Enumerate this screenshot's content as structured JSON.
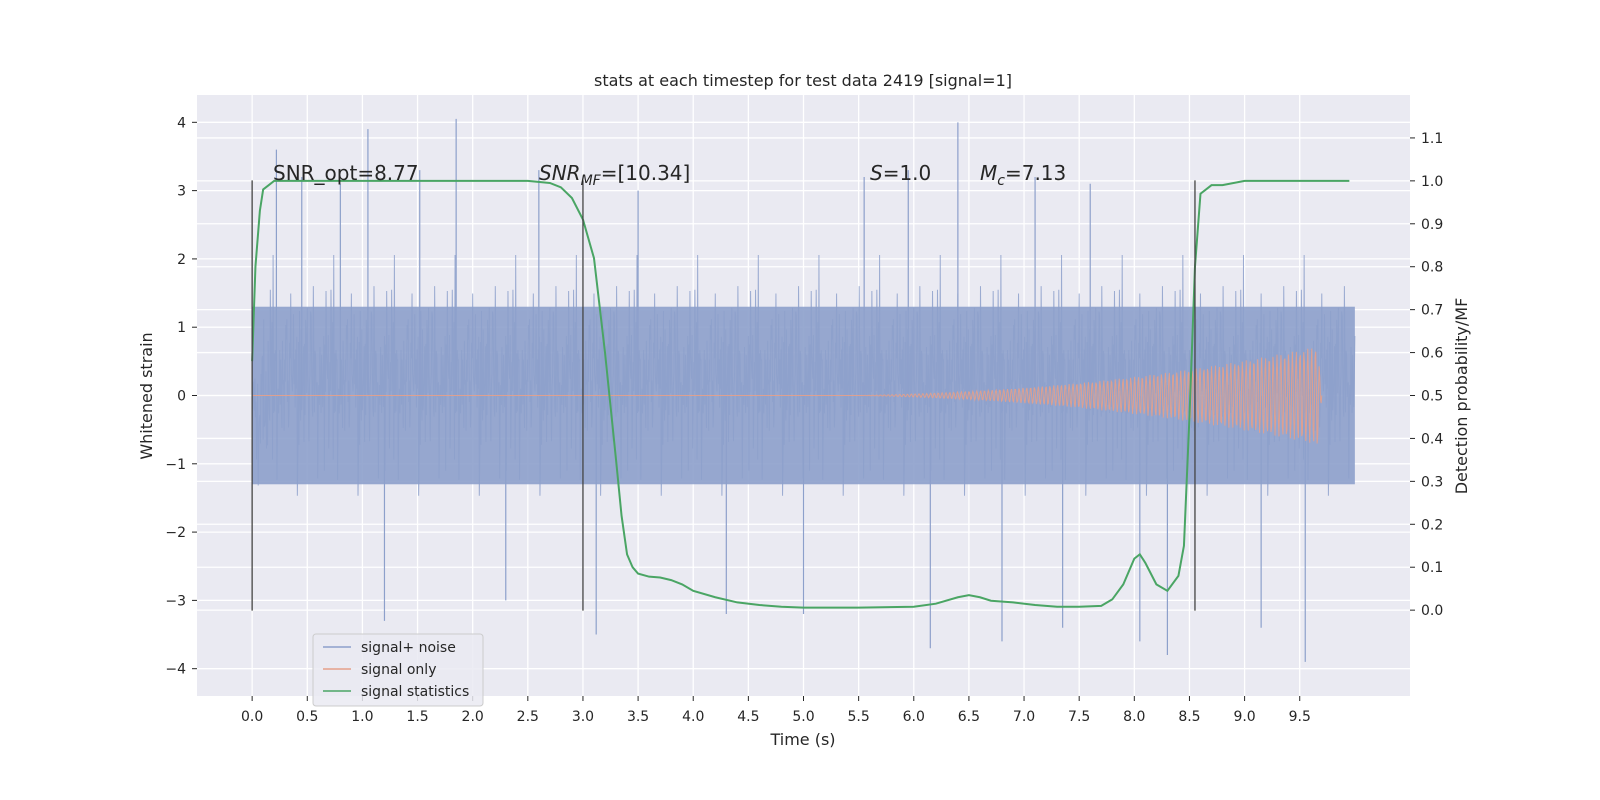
{
  "chart_data": {
    "type": "line",
    "title": "stats at each timestep for test data 2419 [signal=1]",
    "xlabel": "Time (s)",
    "ylabel_left": "Whitened strain",
    "ylabel_right": "Detection probability/MF",
    "xlim": [
      -0.5,
      10.5
    ],
    "ylim_left": [
      -4.4,
      4.4
    ],
    "ylim_right": [
      -0.2,
      1.2
    ],
    "x_ticks": [
      "0.0",
      "0.5",
      "1.0",
      "1.5",
      "2.0",
      "2.5",
      "3.0",
      "3.5",
      "4.0",
      "4.5",
      "5.0",
      "5.5",
      "6.0",
      "6.5",
      "7.0",
      "7.5",
      "8.0",
      "8.5",
      "9.0",
      "9.5"
    ],
    "y_left_ticks": [
      "4",
      "3",
      "2",
      "1",
      "0",
      "−1",
      "−2",
      "−3",
      "−4"
    ],
    "y_right_ticks": [
      "1.1",
      "1.0",
      "0.9",
      "0.8",
      "0.7",
      "0.6",
      "0.5",
      "0.4",
      "0.3",
      "0.2",
      "0.1",
      "0.0"
    ],
    "grid": true,
    "legend_position": "lower-left",
    "annotations": {
      "snr_opt": "SNR_opt=8.77",
      "snr_mf_base": "SNR",
      "snr_mf_sub": "MF",
      "snr_mf_value": "=[10.34]",
      "s_var": "S",
      "s_value": "=1.0",
      "mc_var": "M",
      "mc_sub": "c",
      "mc_value": "=7.13"
    },
    "vertical_markers": [
      0.0,
      3.0,
      8.55
    ],
    "series": [
      {
        "name": "signal+ noise",
        "color": "#8da0cb",
        "axis": "left",
        "envelope": {
          "x_range": [
            0.0,
            10.0
          ],
          "core": [
            -1.3,
            1.3
          ],
          "typical_peak": 2.3
        },
        "spikes": [
          [
            0.22,
            3.6
          ],
          [
            0.45,
            3.2
          ],
          [
            0.8,
            3.1
          ],
          [
            1.05,
            3.9
          ],
          [
            1.2,
            -3.3
          ],
          [
            1.52,
            3.3
          ],
          [
            1.85,
            4.05
          ],
          [
            2.3,
            -3.0
          ],
          [
            2.6,
            3.3
          ],
          [
            3.12,
            -3.5
          ],
          [
            3.5,
            3.0
          ],
          [
            4.3,
            -3.2
          ],
          [
            5.0,
            -3.2
          ],
          [
            5.55,
            3.2
          ],
          [
            5.95,
            3.3
          ],
          [
            6.15,
            -3.7
          ],
          [
            6.4,
            4.0
          ],
          [
            6.8,
            -3.6
          ],
          [
            7.1,
            3.2
          ],
          [
            7.35,
            -3.4
          ],
          [
            7.6,
            3.1
          ],
          [
            8.05,
            -3.6
          ],
          [
            8.3,
            -3.8
          ],
          [
            9.15,
            -3.4
          ],
          [
            9.55,
            -3.9
          ]
        ]
      },
      {
        "name": "signal only",
        "color": "#e5a08a",
        "axis": "left",
        "chirp": {
          "start": 5.5,
          "peak_time": 9.65,
          "peak_amplitude": 0.95,
          "end": 9.7
        }
      },
      {
        "name": "signal statistics",
        "color": "#4aa564",
        "axis": "right",
        "x": [
          0.0,
          0.03,
          0.07,
          0.1,
          0.15,
          0.2,
          0.3,
          0.5,
          1.0,
          1.5,
          2.0,
          2.5,
          2.7,
          2.8,
          2.9,
          3.0,
          3.1,
          3.2,
          3.3,
          3.35,
          3.4,
          3.45,
          3.5,
          3.6,
          3.7,
          3.8,
          3.9,
          4.0,
          4.2,
          4.4,
          4.6,
          4.8,
          5.0,
          5.5,
          6.0,
          6.2,
          6.4,
          6.5,
          6.6,
          6.7,
          6.9,
          7.1,
          7.3,
          7.5,
          7.7,
          7.8,
          7.9,
          8.0,
          8.05,
          8.1,
          8.2,
          8.3,
          8.4,
          8.45,
          8.5,
          8.55,
          8.6,
          8.7,
          8.8,
          9.0,
          9.5,
          9.95
        ],
        "y": [
          0.58,
          0.8,
          0.93,
          0.98,
          0.99,
          1.0,
          1.0,
          1.0,
          1.0,
          1.0,
          1.0,
          1.0,
          0.995,
          0.985,
          0.96,
          0.91,
          0.82,
          0.6,
          0.35,
          0.22,
          0.13,
          0.1,
          0.085,
          0.078,
          0.076,
          0.07,
          0.06,
          0.045,
          0.03,
          0.018,
          0.012,
          0.008,
          0.006,
          0.006,
          0.008,
          0.015,
          0.03,
          0.035,
          0.03,
          0.022,
          0.018,
          0.012,
          0.008,
          0.008,
          0.01,
          0.025,
          0.06,
          0.12,
          0.13,
          0.11,
          0.06,
          0.045,
          0.08,
          0.15,
          0.45,
          0.8,
          0.97,
          0.99,
          0.99,
          1.0,
          1.0,
          1.0
        ]
      }
    ]
  }
}
